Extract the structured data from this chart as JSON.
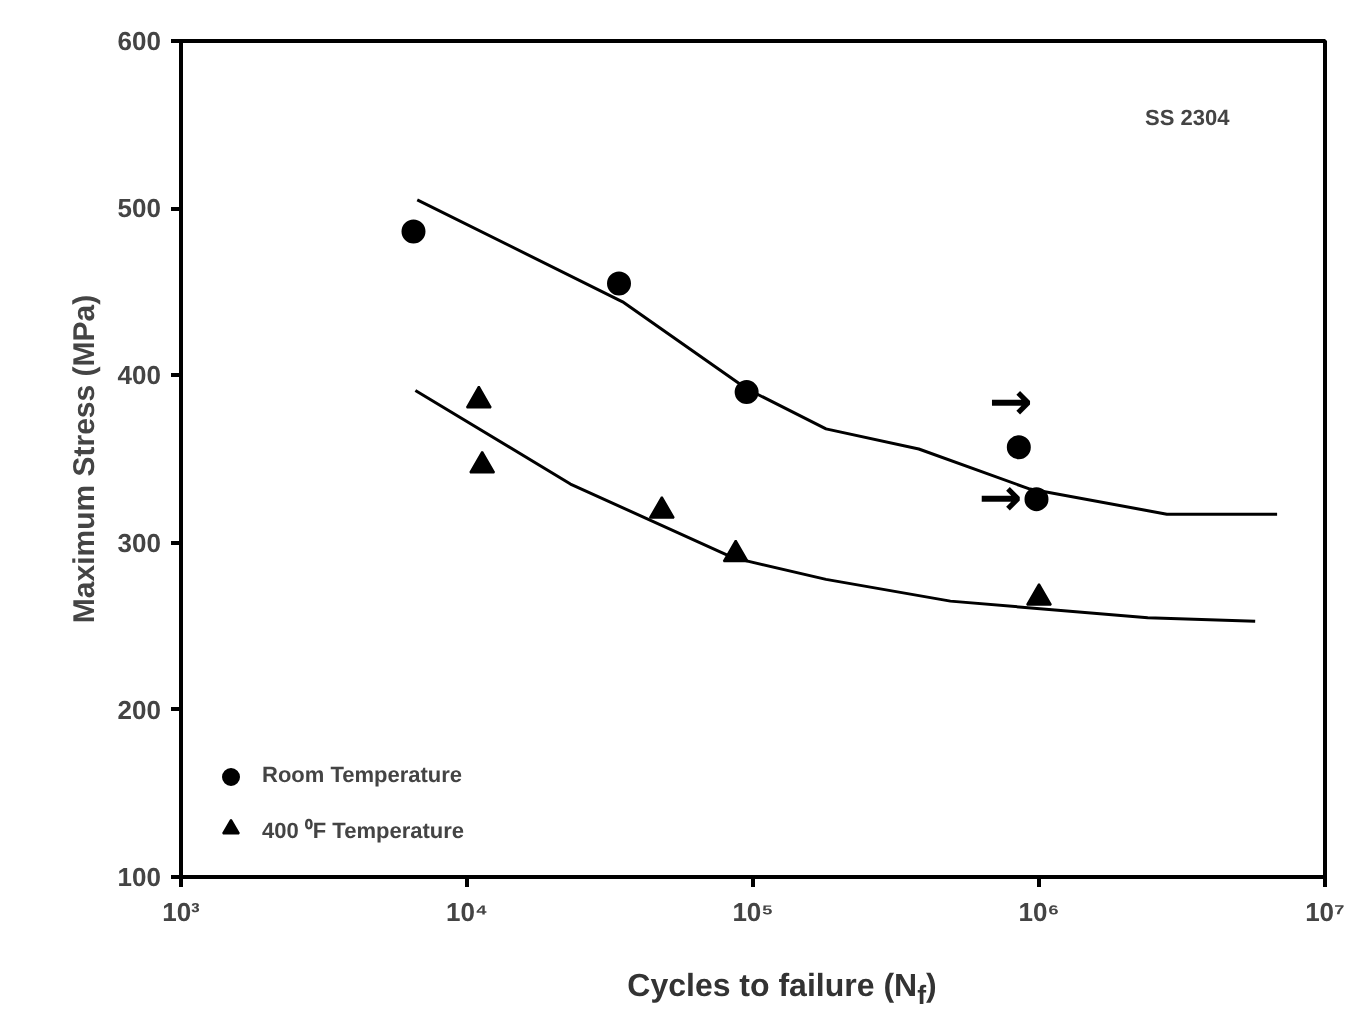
{
  "chart_data": {
    "type": "scatter",
    "xlabel": "Cycles to failure (N$_{f}$)",
    "ylabel": "Maximum Stress (MPa)",
    "log": "x",
    "xlim": [
      1000,
      10000000
    ],
    "ylim": [
      100,
      600
    ],
    "xticks": [
      {
        "value": 1000,
        "label": "10³"
      },
      {
        "value": 10000,
        "label": "10⁴"
      },
      {
        "value": 100000,
        "label": "10⁵"
      },
      {
        "value": 1000000,
        "label": "10⁶"
      },
      {
        "value": 10000000,
        "label": "10⁷"
      }
    ],
    "yticks": [
      100,
      200,
      300,
      400,
      500,
      600
    ],
    "grid": false,
    "legend": "bottom left",
    "series": [
      {
        "name": "Room Temperature",
        "color": "#000000",
        "marker": "circle",
        "x": [
          6500,
          34000,
          95000,
          850000,
          980000
        ],
        "values": [
          486,
          455,
          390,
          357,
          326
        ]
      },
      {
        "name": "400 ⁰F Temperature",
        "color": "#000000",
        "marker": "triangle",
        "x": [
          11000,
          11300,
          48000,
          87000,
          1000000
        ],
        "values": [
          385,
          346,
          319,
          293,
          267
        ]
      },
      {
        "type": "line",
        "color": "#000000",
        "x": [
          6700,
          35000,
          95000,
          180000,
          380000,
          930000,
          2800000,
          6800000
        ],
        "values": [
          505,
          444,
          392,
          368,
          356,
          332,
          317,
          317
        ]
      },
      {
        "type": "line",
        "color": "#000000",
        "x": [
          6600,
          23000,
          85000,
          180000,
          490000,
          2400000,
          5700000
        ],
        "values": [
          391,
          335,
          291,
          278,
          265,
          255,
          253
        ]
      }
    ],
    "annotations": [
      "SS 2304",
      "→",
      "→"
    ]
  }
}
